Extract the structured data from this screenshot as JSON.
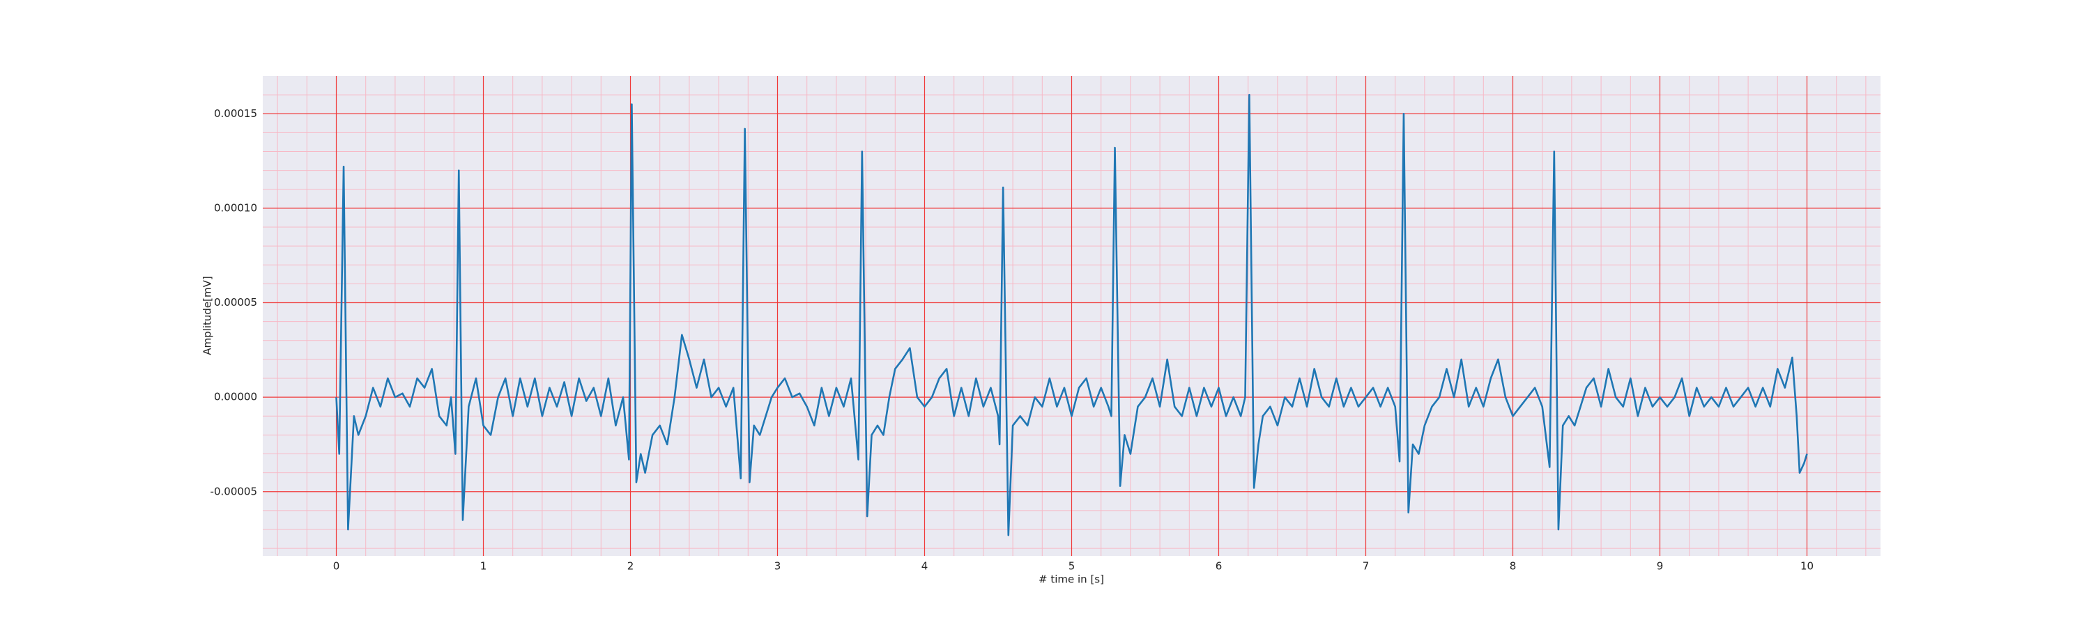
{
  "chart_data": {
    "type": "line",
    "xlabel": "# time in [s]",
    "ylabel": "Amplitude[mV]",
    "color": "#1f77b4",
    "grid": true,
    "minor_grid": true,
    "xlim": [
      -0.5,
      10.5
    ],
    "ylim": [
      -8.4e-05,
      0.00017
    ],
    "xticks": [
      0,
      1,
      2,
      3,
      4,
      5,
      6,
      7,
      8,
      9,
      10
    ],
    "yticks": [
      {
        "value": -5e-05,
        "label": "-0.00005"
      },
      {
        "value": 0,
        "label": "0.00000"
      },
      {
        "value": 5e-05,
        "label": "0.00005"
      },
      {
        "value": 0.0001,
        "label": "0.00010"
      },
      {
        "value": 0.00015,
        "label": "0.00015"
      }
    ],
    "xminorticks": [
      -0.4,
      -0.2,
      0.2,
      0.4,
      0.6,
      0.8,
      1.2,
      1.4,
      1.6,
      1.8,
      2.2,
      2.4,
      2.6,
      2.8,
      3.2,
      3.4,
      3.6,
      3.8,
      4.2,
      4.4,
      4.6,
      4.8,
      5.2,
      5.4,
      5.6,
      5.8,
      6.2,
      6.4,
      6.6,
      6.8,
      7.2,
      7.4,
      7.6,
      7.8,
      8.2,
      8.4,
      8.6,
      8.8,
      9.2,
      9.4,
      9.6,
      9.8,
      10.2,
      10.4
    ],
    "yminorticks": [
      -8e-05,
      -7e-05,
      -6e-05,
      -4e-05,
      -3e-05,
      -2e-05,
      -1e-05,
      1e-05,
      2e-05,
      3e-05,
      4e-05,
      6e-05,
      7e-05,
      8e-05,
      9e-05,
      0.00011,
      0.00012,
      0.00013,
      0.00014,
      0.00016
    ],
    "x": [
      0,
      0.02,
      0.05,
      0.08,
      0.12,
      0.15,
      0.2,
      0.25,
      0.3,
      0.35,
      0.4,
      0.45,
      0.5,
      0.55,
      0.6,
      0.65,
      0.7,
      0.75,
      0.78,
      0.81,
      0.833,
      0.86,
      0.9,
      0.95,
      1.0,
      1.05,
      1.1,
      1.15,
      1.2,
      1.25,
      1.3,
      1.35,
      1.4,
      1.45,
      1.5,
      1.55,
      1.6,
      1.65,
      1.7,
      1.75,
      1.8,
      1.85,
      1.9,
      1.95,
      1.99,
      2.009,
      2.04,
      2.07,
      2.1,
      2.15,
      2.2,
      2.25,
      2.3,
      2.35,
      2.4,
      2.45,
      2.5,
      2.55,
      2.6,
      2.65,
      2.7,
      2.75,
      2.778,
      2.81,
      2.84,
      2.88,
      2.92,
      2.96,
      3.0,
      3.05,
      3.1,
      3.15,
      3.2,
      3.25,
      3.3,
      3.35,
      3.4,
      3.45,
      3.5,
      3.55,
      3.575,
      3.61,
      3.64,
      3.68,
      3.72,
      3.76,
      3.8,
      3.85,
      3.9,
      3.95,
      4.0,
      4.05,
      4.1,
      4.15,
      4.2,
      4.25,
      4.3,
      4.35,
      4.4,
      4.45,
      4.5,
      4.51,
      4.534,
      4.57,
      4.6,
      4.65,
      4.7,
      4.75,
      4.8,
      4.85,
      4.9,
      4.95,
      5.0,
      5.05,
      5.1,
      5.15,
      5.2,
      5.25,
      5.27,
      5.294,
      5.33,
      5.36,
      5.4,
      5.45,
      5.5,
      5.55,
      5.6,
      5.65,
      5.7,
      5.75,
      5.8,
      5.85,
      5.9,
      5.95,
      6.0,
      6.05,
      6.1,
      6.15,
      6.18,
      6.208,
      6.24,
      6.27,
      6.3,
      6.35,
      6.4,
      6.45,
      6.5,
      6.55,
      6.6,
      6.65,
      6.7,
      6.75,
      6.8,
      6.85,
      6.9,
      6.95,
      7.0,
      7.05,
      7.1,
      7.15,
      7.2,
      7.23,
      7.258,
      7.29,
      7.32,
      7.36,
      7.4,
      7.45,
      7.5,
      7.55,
      7.6,
      7.65,
      7.7,
      7.75,
      7.8,
      7.85,
      7.9,
      7.95,
      8.0,
      8.05,
      8.1,
      8.15,
      8.2,
      8.25,
      8.281,
      8.31,
      8.34,
      8.38,
      8.42,
      8.46,
      8.5,
      8.55,
      8.6,
      8.65,
      8.7,
      8.75,
      8.8,
      8.85,
      8.9,
      8.95,
      9.0,
      9.05,
      9.1,
      9.15,
      9.2,
      9.25,
      9.3,
      9.35,
      9.4,
      9.45,
      9.5,
      9.55,
      9.6,
      9.65,
      9.7,
      9.75,
      9.8,
      9.85,
      9.9,
      9.93,
      9.95,
      9.98,
      10.0
    ],
    "values": [
      0,
      -3e-05,
      0.000122,
      -7e-05,
      -1e-05,
      -2e-05,
      -1e-05,
      5e-06,
      -5e-06,
      1e-05,
      0,
      2e-06,
      -5e-06,
      1e-05,
      5e-06,
      1.5e-05,
      -1e-05,
      -1.5e-05,
      0,
      -3e-05,
      0.00012,
      -6.5e-05,
      -5e-06,
      1e-05,
      -1.5e-05,
      -2e-05,
      0,
      1e-05,
      -1e-05,
      1e-05,
      -5e-06,
      1e-05,
      -1e-05,
      5e-06,
      -5e-06,
      8e-06,
      -1e-05,
      1e-05,
      -2e-06,
      5e-06,
      -1e-05,
      1e-05,
      -1.5e-05,
      0,
      -3.3e-05,
      0.000155,
      -4.5e-05,
      -3e-05,
      -4e-05,
      -2e-05,
      -1.5e-05,
      -2.5e-05,
      0,
      3.3e-05,
      2e-05,
      5e-06,
      2e-05,
      0,
      5e-06,
      -5e-06,
      5e-06,
      -4.3e-05,
      0.000142,
      -4.5e-05,
      -1.5e-05,
      -2e-05,
      -1e-05,
      0,
      5e-06,
      1e-05,
      0,
      2e-06,
      -5e-06,
      -1.5e-05,
      5e-06,
      -1e-05,
      5e-06,
      -5e-06,
      1e-05,
      -3.3e-05,
      0.00013,
      -6.3e-05,
      -2e-05,
      -1.5e-05,
      -2e-05,
      0,
      1.5e-05,
      2e-05,
      2.6e-05,
      0,
      -5e-06,
      0,
      1e-05,
      1.5e-05,
      -1e-05,
      5e-06,
      -1e-05,
      1e-05,
      -5e-06,
      5e-06,
      -1e-05,
      -2.5e-05,
      0.000111,
      -7.3e-05,
      -1.5e-05,
      -1e-05,
      -1.5e-05,
      0,
      -5e-06,
      1e-05,
      -5e-06,
      5e-06,
      -1e-05,
      5e-06,
      1e-05,
      -5e-06,
      5e-06,
      -5e-06,
      -1e-05,
      0.000132,
      -4.7e-05,
      -2e-05,
      -3e-05,
      -5e-06,
      0,
      1e-05,
      -5e-06,
      2e-05,
      -5e-06,
      -1e-05,
      5e-06,
      -1e-05,
      5e-06,
      -5e-06,
      5e-06,
      -1e-05,
      0,
      -1e-05,
      0,
      0.00016,
      -4.8e-05,
      -2.5e-05,
      -1e-05,
      -5e-06,
      -1.5e-05,
      0,
      -5e-06,
      1e-05,
      -5e-06,
      1.5e-05,
      0,
      -5e-06,
      1e-05,
      -5e-06,
      5e-06,
      -5e-06,
      0,
      5e-06,
      -5e-06,
      5e-06,
      -5e-06,
      -3.4e-05,
      0.00015,
      -6.1e-05,
      -2.5e-05,
      -3e-05,
      -1.5e-05,
      -5e-06,
      0,
      1.5e-05,
      0,
      2e-05,
      -5e-06,
      5e-06,
      -5e-06,
      1e-05,
      2e-05,
      0,
      -1e-05,
      -5e-06,
      0,
      5e-06,
      -5e-06,
      -3.7e-05,
      0.00013,
      -7e-05,
      -1.5e-05,
      -1e-05,
      -1.5e-05,
      -5e-06,
      5e-06,
      1e-05,
      -5e-06,
      1.5e-05,
      0,
      -5e-06,
      1e-05,
      -1e-05,
      5e-06,
      -5e-06,
      0,
      -5e-06,
      0,
      1e-05,
      -1e-05,
      5e-06,
      -5e-06,
      0,
      -5e-06,
      5e-06,
      -5e-06,
      0,
      5e-06,
      -5e-06,
      5e-06,
      -5e-06,
      1.5e-05,
      5e-06,
      2.1e-05,
      -1e-05,
      -4e-05,
      -3.5e-05,
      -3e-05
    ]
  }
}
